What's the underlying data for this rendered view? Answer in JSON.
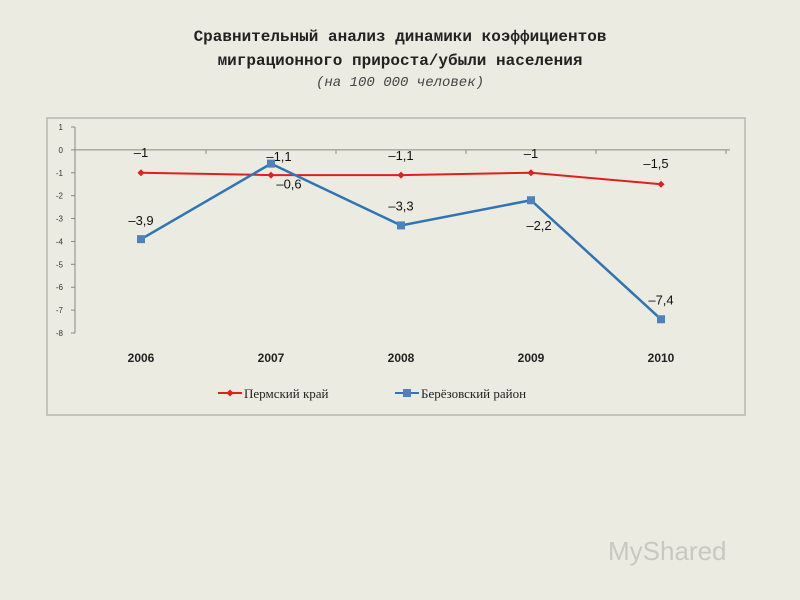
{
  "title_line1": "Сравнительный анализ динамики коэффициентов",
  "title_line2": "миграционного прироста/убыли населения",
  "subtitle": "(на 100 000 человек)",
  "logo": "MyShared",
  "chart_data": {
    "type": "line",
    "categories": [
      "2006",
      "2007",
      "2008",
      "2009",
      "2010"
    ],
    "ylim": [
      -8,
      1
    ],
    "yticks": [
      "1",
      "0",
      "-1",
      "-2",
      "-3",
      "-4",
      "-5",
      "-6",
      "-7",
      "-8"
    ],
    "grid": false,
    "legend": "bottom",
    "series": [
      {
        "name": "Пермский край",
        "values": [
          -1,
          -1.1,
          -1.1,
          -1,
          -1.5
        ],
        "labels": [
          "–1",
          "–1,1",
          "–1,1",
          "–1",
          "–1,5"
        ],
        "color": "#e0201c",
        "marker": "diamond"
      },
      {
        "name": "Берёзовский район",
        "values": [
          -3.9,
          -0.6,
          -3.3,
          -2.2,
          -7.4
        ],
        "labels": [
          "–3,9",
          "–0,6",
          "–3,3",
          "–2,2",
          "–7,4"
        ],
        "color": "#2f75b5",
        "marker": "square"
      }
    ]
  }
}
